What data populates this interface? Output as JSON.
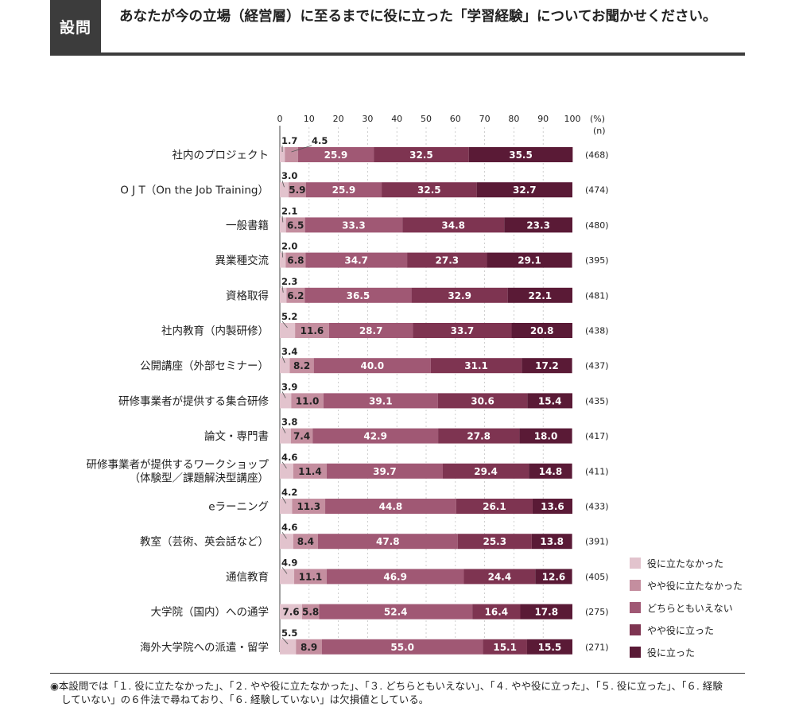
{
  "header": {
    "label": "設問",
    "question": "あなたが今の立場（経営層）に至るまでに役に立った「学習経験」についてお聞かせください。"
  },
  "chart_data": {
    "type": "bar",
    "orientation": "horizontal",
    "stacked": true,
    "x_axis_ticks": [
      "0",
      "10",
      "20",
      "30",
      "40",
      "50",
      "60",
      "70",
      "80",
      "90",
      "100"
    ],
    "unit_label": "(%)",
    "n_label": "(n)",
    "xlim": [
      0,
      100
    ],
    "colors": [
      "#e2c3cd",
      "#c48e9f",
      "#a05874",
      "#7e3451",
      "#5a1a36"
    ],
    "legend_position": "bottom-right",
    "series_names": [
      "役に立たなかった",
      "やや役に立たなかった",
      "どちらともいえない",
      "やや役に立った",
      "役に立った"
    ],
    "rows": [
      {
        "label": [
          "社内のプロジェクト"
        ],
        "n": "(468)",
        "values": [
          1.7,
          4.5,
          25.9,
          32.5,
          35.5
        ],
        "labels": [
          "1.7",
          "4.5",
          "25.9",
          "32.5",
          "35.5"
        ]
      },
      {
        "label": [
          "O J T（On the Job Training）"
        ],
        "n": "(474)",
        "values": [
          3.0,
          5.9,
          25.9,
          32.5,
          32.7
        ],
        "labels": [
          "3.0",
          "5.9",
          "25.9",
          "32.5",
          "32.7"
        ]
      },
      {
        "label": [
          "一般書籍"
        ],
        "n": "(480)",
        "values": [
          2.1,
          6.5,
          33.3,
          34.8,
          23.3
        ],
        "labels": [
          "2.1",
          "6.5",
          "33.3",
          "34.8",
          "23.3"
        ]
      },
      {
        "label": [
          "異業種交流"
        ],
        "n": "(395)",
        "values": [
          2.0,
          6.8,
          34.7,
          27.3,
          29.1
        ],
        "labels": [
          "2.0",
          "6.8",
          "34.7",
          "27.3",
          "29.1"
        ]
      },
      {
        "label": [
          "資格取得"
        ],
        "n": "(481)",
        "values": [
          2.3,
          6.2,
          36.5,
          32.9,
          22.1
        ],
        "labels": [
          "2.3",
          "6.2",
          "36.5",
          "32.9",
          "22.1"
        ]
      },
      {
        "label": [
          "社内教育（内製研修）"
        ],
        "n": "(438)",
        "values": [
          5.2,
          11.6,
          28.7,
          33.7,
          20.8
        ],
        "labels": [
          "5.2",
          "11.6",
          "28.7",
          "33.7",
          "20.8"
        ]
      },
      {
        "label": [
          "公開講座（外部セミナー）"
        ],
        "n": "(437)",
        "values": [
          3.4,
          8.2,
          40.0,
          31.1,
          17.2
        ],
        "labels": [
          "3.4",
          "8.2",
          "40.0",
          "31.1",
          "17.2"
        ]
      },
      {
        "label": [
          "研修事業者が提供する集合研修"
        ],
        "n": "(435)",
        "values": [
          3.9,
          11.0,
          39.1,
          30.6,
          15.4
        ],
        "labels": [
          "3.9",
          "11.0",
          "39.1",
          "30.6",
          "15.4"
        ]
      },
      {
        "label": [
          "論文・専門書"
        ],
        "n": "(417)",
        "values": [
          3.8,
          7.4,
          42.9,
          27.8,
          18.0
        ],
        "labels": [
          "3.8",
          "7.4",
          "42.9",
          "27.8",
          "18.0"
        ]
      },
      {
        "label": [
          "研修事業者が提供するワークショップ",
          "（体験型／課題解決型講座）"
        ],
        "n": "(411)",
        "values": [
          4.6,
          11.4,
          39.7,
          29.4,
          14.8
        ],
        "labels": [
          "4.6",
          "11.4",
          "39.7",
          "29.4",
          "14.8"
        ]
      },
      {
        "label": [
          "eラーニング"
        ],
        "n": "(433)",
        "values": [
          4.2,
          11.3,
          44.8,
          26.1,
          13.6
        ],
        "labels": [
          "4.2",
          "11.3",
          "44.8",
          "26.1",
          "13.6"
        ]
      },
      {
        "label": [
          "教室（芸術、英会話など）"
        ],
        "n": "(391)",
        "values": [
          4.6,
          8.4,
          47.8,
          25.3,
          13.8
        ],
        "labels": [
          "4.6",
          "8.4",
          "47.8",
          "25.3",
          "13.8"
        ]
      },
      {
        "label": [
          "通信教育"
        ],
        "n": "(405)",
        "values": [
          4.9,
          11.1,
          46.9,
          24.4,
          12.6
        ],
        "labels": [
          "4.9",
          "11.1",
          "46.9",
          "24.4",
          "12.6"
        ]
      },
      {
        "label": [
          "大学院（国内）への通学"
        ],
        "n": "(275)",
        "values": [
          7.6,
          5.8,
          52.4,
          16.4,
          17.8
        ],
        "labels": [
          "7.6",
          "5.8",
          "52.4",
          "16.4",
          "17.8"
        ]
      },
      {
        "label": [
          "海外大学院への派遣・留学"
        ],
        "n": "(271)",
        "values": [
          5.5,
          8.9,
          55.0,
          15.1,
          15.5
        ],
        "labels": [
          "5.5",
          "8.9",
          "55.0",
          "15.1",
          "15.5"
        ]
      }
    ]
  },
  "note": {
    "line1": "◉本設問では「１. 役に立たなかった」、「２. やや役に立たなかった」、「３. どちらともいえない」、「４. やや役に立った」、「５. 役に立った」、「６. 経験",
    "line2": "していない」の６件法で尋ねており、「６. 経験していない」は欠損値としている。"
  }
}
